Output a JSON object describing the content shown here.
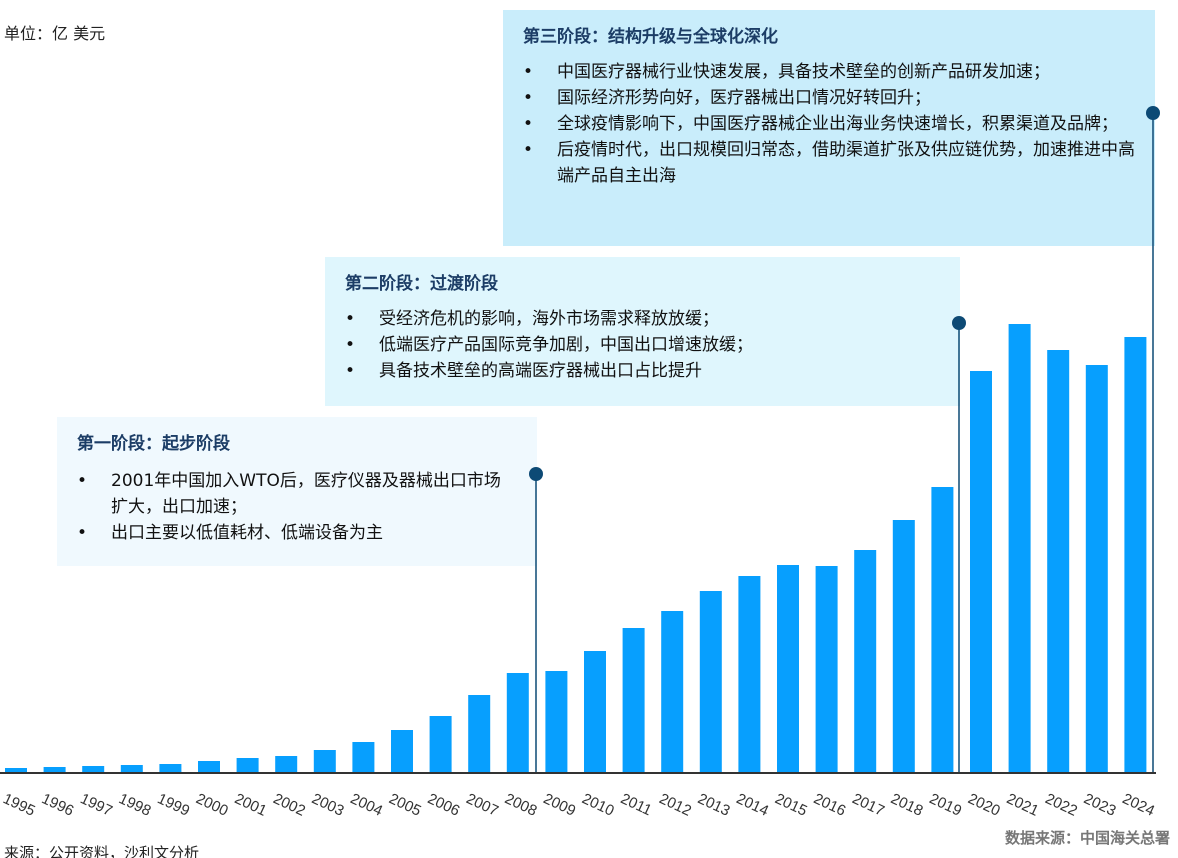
{
  "unit_label": "单位：亿 美元",
  "stages": [
    {
      "title": "第一阶段：起步阶段",
      "bullets": [
        "2001年中国加入WTO后，医疗仪器及器械出口市场扩大，出口加速；",
        "出口主要以低值耗材、低端设备为主"
      ]
    },
    {
      "title": "第二阶段：过渡阶段",
      "bullets": [
        "受经济危机的影响，海外市场需求释放放缓；",
        "低端医疗产品国际竞争加剧，中国出口增速放缓；",
        "具备技术壁垒的高端医疗器械出口占比提升"
      ]
    },
    {
      "title": "第三阶段：结构升级与全球化深化",
      "bullets": [
        "中国医疗器械行业快速发展，具备技术壁垒的创新产品研发加速；",
        "国际经济形势向好，医疗器械出口情况好转回升；",
        "全球疫情影响下，中国医疗器械企业出海业务快速增长，积累渠道及品牌；",
        "后疫情时代，出口规模回归常态，借助渠道扩张及供应链优势，加速推进中高端产品自主出海"
      ]
    }
  ],
  "source": "来源：公开资料，沙利文分析",
  "data_source": "数据来源：中国海关总署",
  "colors": {
    "bar": "#079ffe",
    "marker": "#0d4a75",
    "stage1": "#f0f9fe",
    "stage2": "#dff6fd",
    "stage3": "#c9edfb"
  },
  "chart_data": {
    "type": "bar",
    "categories": [
      "1995",
      "1996",
      "1997",
      "1998",
      "1999",
      "2000",
      "2001",
      "2002",
      "2003",
      "2004",
      "2005",
      "2006",
      "2007",
      "2008",
      "2009",
      "2010",
      "2011",
      "2012",
      "2013",
      "2014",
      "2015",
      "2016",
      "2017",
      "2018",
      "2019",
      "2020",
      "2021",
      "2022",
      "2023",
      "2024"
    ],
    "values": [
      4,
      5,
      6,
      7,
      8,
      11,
      14,
      16,
      22,
      30,
      42,
      56,
      77,
      99,
      101,
      121,
      144,
      161,
      181,
      196,
      207,
      206,
      222,
      252,
      285,
      401,
      448,
      422,
      407,
      435
    ],
    "ylabel": "单位：亿 美元",
    "grid": false
  }
}
